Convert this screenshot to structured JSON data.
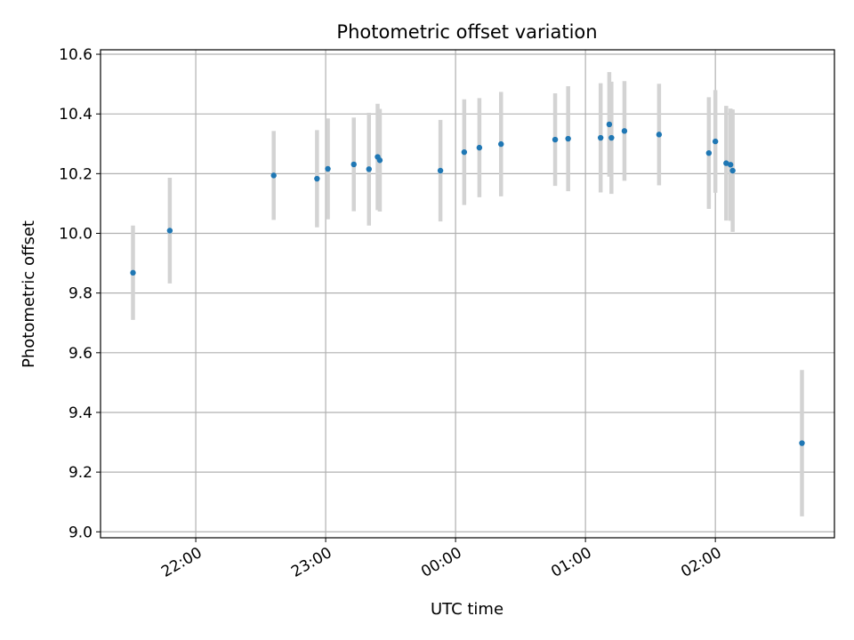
{
  "chart_data": {
    "type": "scatter",
    "title": "Photometric offset variation",
    "xlabel": "UTC time",
    "ylabel": "Photometric offset",
    "xlim": [
      "21:16",
      "02:55"
    ],
    "ylim": [
      8.98,
      10.615
    ],
    "grid": true,
    "x_ticks": [
      "22:00",
      "23:00",
      "00:00",
      "01:00",
      "02:00"
    ],
    "y_ticks": [
      "9.0",
      "9.2",
      "9.4",
      "9.6",
      "9.8",
      "10.0",
      "10.2",
      "10.4",
      "10.6"
    ],
    "series": [
      {
        "marker_color": "#1f77b4",
        "errorbar_color": "#d3d3d3",
        "points": [
          {
            "t": "21:31",
            "y": 9.868,
            "err": 0.158
          },
          {
            "t": "21:48",
            "y": 10.009,
            "err": 0.177
          },
          {
            "t": "22:36",
            "y": 10.194,
            "err": 0.149
          },
          {
            "t": "22:56",
            "y": 10.183,
            "err": 0.163
          },
          {
            "t": "23:01",
            "y": 10.216,
            "err": 0.169
          },
          {
            "t": "23:13",
            "y": 10.231,
            "err": 0.157
          },
          {
            "t": "23:20",
            "y": 10.215,
            "err": 0.189
          },
          {
            "t": "23:24",
            "y": 10.256,
            "err": 0.178
          },
          {
            "t": "23:25",
            "y": 10.245,
            "err": 0.172
          },
          {
            "t": "23:53",
            "y": 10.21,
            "err": 0.17
          },
          {
            "t": "00:04",
            "y": 10.272,
            "err": 0.177
          },
          {
            "t": "00:11",
            "y": 10.287,
            "err": 0.166
          },
          {
            "t": "00:21",
            "y": 10.299,
            "err": 0.175
          },
          {
            "t": "00:46",
            "y": 10.314,
            "err": 0.155
          },
          {
            "t": "00:52",
            "y": 10.317,
            "err": 0.176
          },
          {
            "t": "01:07",
            "y": 10.32,
            "err": 0.183
          },
          {
            "t": "01:11",
            "y": 10.365,
            "err": 0.175
          },
          {
            "t": "01:12",
            "y": 10.32,
            "err": 0.188
          },
          {
            "t": "01:18",
            "y": 10.343,
            "err": 0.167
          },
          {
            "t": "01:34",
            "y": 10.331,
            "err": 0.17
          },
          {
            "t": "01:57",
            "y": 10.269,
            "err": 0.187
          },
          {
            "t": "02:00",
            "y": 10.308,
            "err": 0.172
          },
          {
            "t": "02:05",
            "y": 10.235,
            "err": 0.192
          },
          {
            "t": "02:07",
            "y": 10.23,
            "err": 0.188
          },
          {
            "t": "02:08",
            "y": 10.21,
            "err": 0.205
          },
          {
            "t": "02:40",
            "y": 9.297,
            "err": 0.245
          }
        ]
      }
    ]
  }
}
